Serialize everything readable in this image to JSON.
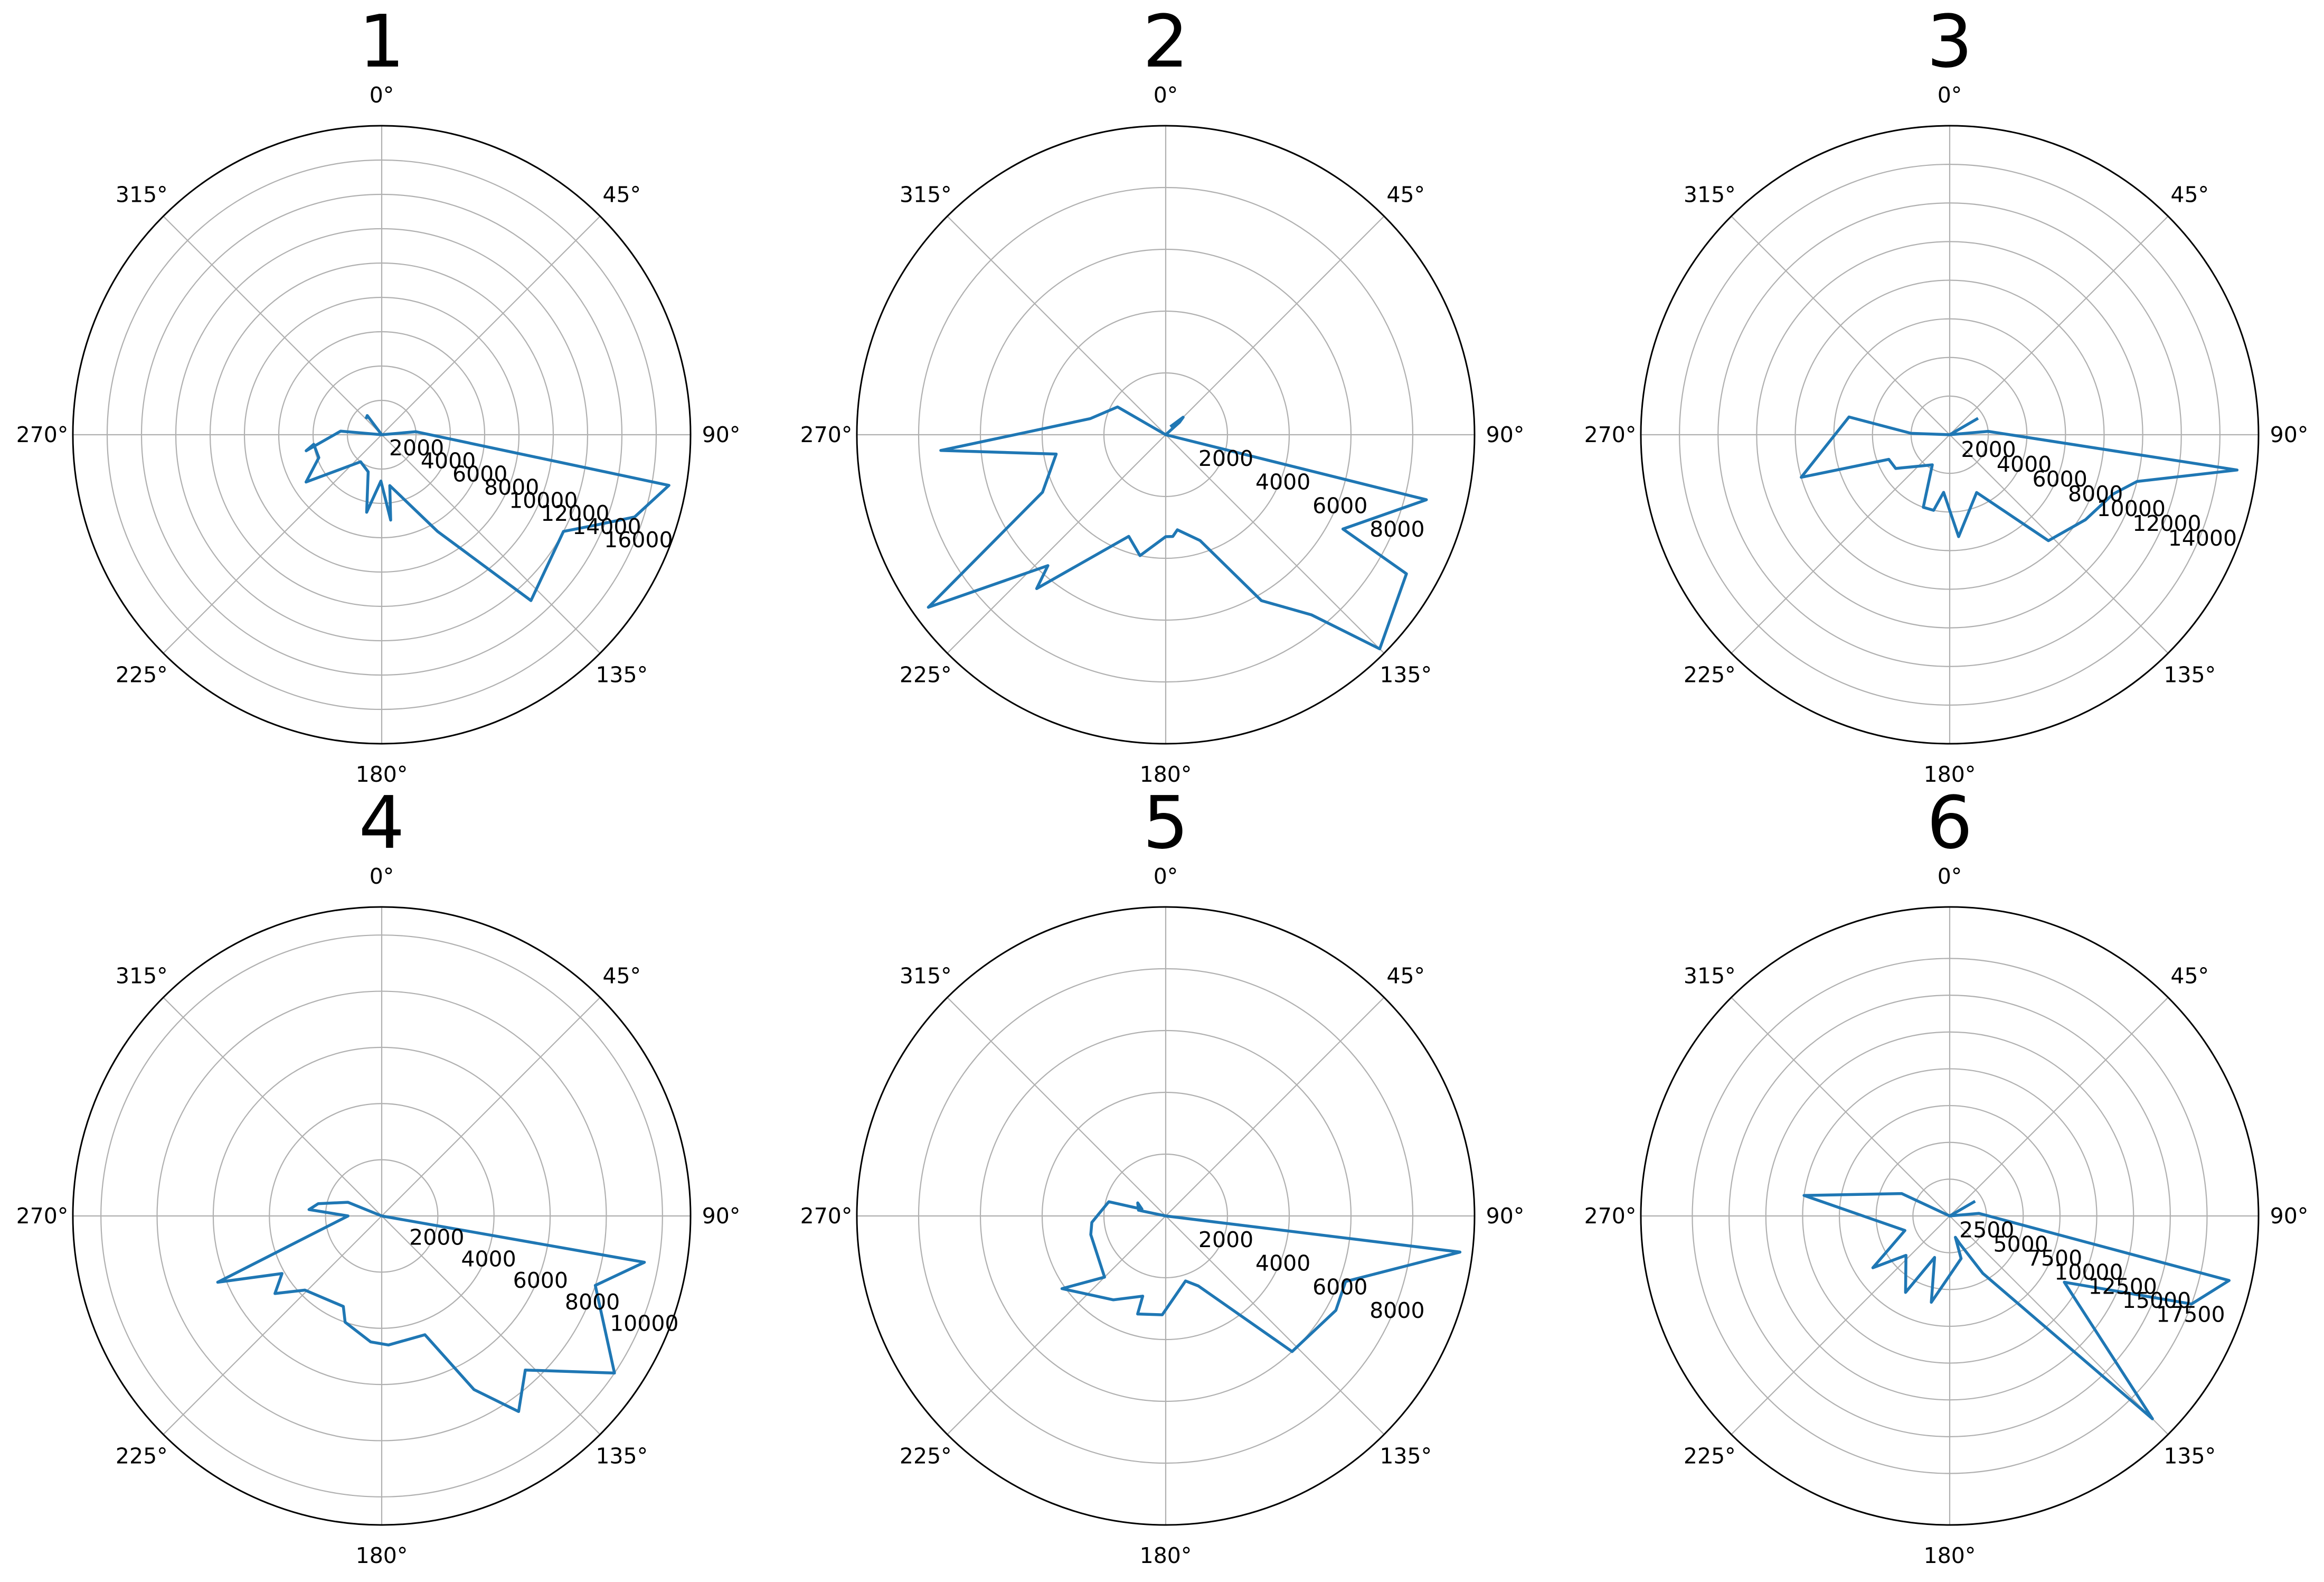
{
  "chart_data": [
    {
      "type": "polar-line",
      "title": "1",
      "theta_zero": "N",
      "theta_direction": "clockwise",
      "theta_ticks": [
        "0°",
        "45°",
        "90°",
        "135°",
        "180°",
        "225°",
        "270°",
        "315°"
      ],
      "rlim": [
        0,
        18000
      ],
      "r_ticks": [
        2000,
        4000,
        6000,
        8000,
        10000,
        12000,
        14000,
        16000
      ],
      "r_tick_labels": [
        "2000",
        "4000",
        "6000",
        "8000",
        "10000",
        "12000",
        "14000",
        "16000"
      ],
      "grid": true,
      "line_color": "#1f77b4",
      "points": [
        {
          "theta": 0,
          "r": 0
        },
        {
          "theta": 85,
          "r": 2000
        },
        {
          "theta": 100,
          "r": 17000
        },
        {
          "theta": 108,
          "r": 15500
        },
        {
          "theta": 113,
          "r": 13500
        },
        {
          "theta": 118,
          "r": 12000
        },
        {
          "theta": 138,
          "r": 13000
        },
        {
          "theta": 150,
          "r": 6500
        },
        {
          "theta": 171,
          "r": 3000
        },
        {
          "theta": 174,
          "r": 5000
        },
        {
          "theta": 181,
          "r": 2700
        },
        {
          "theta": 191,
          "r": 4600
        },
        {
          "theta": 200,
          "r": 2300
        },
        {
          "theta": 218,
          "r": 2000
        },
        {
          "theta": 238,
          "r": 5200
        },
        {
          "theta": 250,
          "r": 3900
        },
        {
          "theta": 262,
          "r": 4000
        },
        {
          "theta": 258,
          "r": 4500
        },
        {
          "theta": 275,
          "r": 2400
        },
        {
          "theta": 0,
          "r": 0
        },
        {
          "theta": 323,
          "r": 1400
        },
        {
          "theta": 315,
          "r": 1300
        }
      ]
    },
    {
      "type": "polar-line",
      "title": "2",
      "theta_zero": "N",
      "theta_direction": "clockwise",
      "theta_ticks": [
        "0°",
        "45°",
        "90°",
        "135°",
        "180°",
        "225°",
        "270°",
        "315°"
      ],
      "rlim": [
        0,
        10000
      ],
      "r_ticks": [
        2000,
        4000,
        6000,
        8000
      ],
      "r_tick_labels": [
        "2000",
        "4000",
        "6000",
        "8000"
      ],
      "grid": true,
      "line_color": "#1f77b4",
      "points": [
        {
          "theta": 0,
          "r": 0
        },
        {
          "theta": 104,
          "r": 8700
        },
        {
          "theta": 118,
          "r": 6500
        },
        {
          "theta": 120,
          "r": 9000
        },
        {
          "theta": 135,
          "r": 9800
        },
        {
          "theta": 141,
          "r": 7500
        },
        {
          "theta": 150,
          "r": 6200
        },
        {
          "theta": 162,
          "r": 3600
        },
        {
          "theta": 173,
          "r": 3100
        },
        {
          "theta": 176,
          "r": 3300
        },
        {
          "theta": 180,
          "r": 3300
        },
        {
          "theta": 192,
          "r": 4000
        },
        {
          "theta": 200,
          "r": 3500
        },
        {
          "theta": 220,
          "r": 6500
        },
        {
          "theta": 222,
          "r": 5700
        },
        {
          "theta": 234,
          "r": 9500
        },
        {
          "theta": 245,
          "r": 4400
        },
        {
          "theta": 260,
          "r": 3600
        },
        {
          "theta": 266,
          "r": 7300
        },
        {
          "theta": 282,
          "r": 2500
        },
        {
          "theta": 300,
          "r": 1800
        },
        {
          "theta": 0,
          "r": 0
        },
        {
          "theta": 48,
          "r": 600
        },
        {
          "theta": 45,
          "r": 800
        },
        {
          "theta": 30,
          "r": 300
        }
      ]
    },
    {
      "type": "polar-line",
      "title": "3",
      "theta_zero": "N",
      "theta_direction": "clockwise",
      "theta_ticks": [
        "0°",
        "45°",
        "90°",
        "135°",
        "180°",
        "225°",
        "270°",
        "315°"
      ],
      "rlim": [
        0,
        16000
      ],
      "r_ticks": [
        2000,
        4000,
        6000,
        8000,
        10000,
        12000,
        14000
      ],
      "r_tick_labels": [
        "2000",
        "4000",
        "6000",
        "8000",
        "10000",
        "12000",
        "14000"
      ],
      "grid": true,
      "line_color": "#1f77b4",
      "points": [
        {
          "theta": 0,
          "r": 0
        },
        {
          "theta": 85,
          "r": 2000
        },
        {
          "theta": 97,
          "r": 15000
        },
        {
          "theta": 104,
          "r": 10000
        },
        {
          "theta": 110,
          "r": 9000
        },
        {
          "theta": 122,
          "r": 8300
        },
        {
          "theta": 137,
          "r": 7500
        },
        {
          "theta": 155,
          "r": 3300
        },
        {
          "theta": 175,
          "r": 5300
        },
        {
          "theta": 186,
          "r": 3000
        },
        {
          "theta": 192,
          "r": 4000
        },
        {
          "theta": 200,
          "r": 4000
        },
        {
          "theta": 210,
          "r": 1800
        },
        {
          "theta": 238,
          "r": 3300
        },
        {
          "theta": 248,
          "r": 3400
        },
        {
          "theta": 254,
          "r": 8000
        },
        {
          "theta": 280,
          "r": 5300
        },
        {
          "theta": 272,
          "r": 2000
        },
        {
          "theta": 0,
          "r": 0
        },
        {
          "theta": 60,
          "r": 1700
        }
      ]
    },
    {
      "type": "polar-line",
      "title": "4",
      "theta_zero": "N",
      "theta_direction": "clockwise",
      "theta_ticks": [
        "0°",
        "45°",
        "90°",
        "135°",
        "180°",
        "225°",
        "270°",
        "315°"
      ],
      "rlim": [
        0,
        11000
      ],
      "r_ticks": [
        2000,
        4000,
        6000,
        8000,
        10000
      ],
      "r_tick_labels": [
        "2000",
        "4000",
        "6000",
        "8000",
        "10000"
      ],
      "grid": true,
      "line_color": "#1f77b4",
      "points": [
        {
          "theta": 0,
          "r": 0
        },
        {
          "theta": 100,
          "r": 9500
        },
        {
          "theta": 108,
          "r": 8000
        },
        {
          "theta": 124,
          "r": 10000
        },
        {
          "theta": 137,
          "r": 7500
        },
        {
          "theta": 145,
          "r": 8500
        },
        {
          "theta": 152,
          "r": 7000
        },
        {
          "theta": 160,
          "r": 4500
        },
        {
          "theta": 177,
          "r": 4600
        },
        {
          "theta": 185,
          "r": 4500
        },
        {
          "theta": 199,
          "r": 4000
        },
        {
          "theta": 203,
          "r": 3500
        },
        {
          "theta": 226,
          "r": 3800
        },
        {
          "theta": 234,
          "r": 4700
        },
        {
          "theta": 240,
          "r": 4100
        },
        {
          "theta": 248,
          "r": 6300
        },
        {
          "theta": 270,
          "r": 1200
        },
        {
          "theta": 275,
          "r": 2600
        },
        {
          "theta": 281,
          "r": 2300
        },
        {
          "theta": 292,
          "r": 1300
        },
        {
          "theta": 0,
          "r": 0
        }
      ]
    },
    {
      "type": "polar-line",
      "title": "5",
      "theta_zero": "N",
      "theta_direction": "clockwise",
      "theta_ticks": [
        "0°",
        "45°",
        "90°",
        "135°",
        "180°",
        "225°",
        "270°",
        "315°"
      ],
      "rlim": [
        0,
        10000
      ],
      "r_ticks": [
        2000,
        4000,
        6000,
        8000
      ],
      "r_tick_labels": [
        "2000",
        "4000",
        "6000",
        "8000"
      ],
      "grid": true,
      "line_color": "#1f77b4",
      "points": [
        {
          "theta": 0,
          "r": 0
        },
        {
          "theta": 97,
          "r": 9600
        },
        {
          "theta": 110,
          "r": 6200
        },
        {
          "theta": 119,
          "r": 6300
        },
        {
          "theta": 137,
          "r": 6000
        },
        {
          "theta": 155,
          "r": 2500
        },
        {
          "theta": 163,
          "r": 2200
        },
        {
          "theta": 182,
          "r": 3200
        },
        {
          "theta": 196,
          "r": 3300
        },
        {
          "theta": 196,
          "r": 2700
        },
        {
          "theta": 212,
          "r": 3200
        },
        {
          "theta": 235,
          "r": 4100
        },
        {
          "theta": 225,
          "r": 2800
        },
        {
          "theta": 256,
          "r": 2500
        },
        {
          "theta": 265,
          "r": 2400
        },
        {
          "theta": 284,
          "r": 1900
        },
        {
          "theta": 286,
          "r": 800
        },
        {
          "theta": 295,
          "r": 1000
        },
        {
          "theta": 282,
          "r": 900
        },
        {
          "theta": 0,
          "r": 0
        }
      ]
    },
    {
      "type": "polar-line",
      "title": "6",
      "theta_zero": "N",
      "theta_direction": "clockwise",
      "theta_ticks": [
        "0°",
        "45°",
        "90°",
        "135°",
        "180°",
        "225°",
        "270°",
        "315°"
      ],
      "rlim": [
        0,
        21000
      ],
      "r_ticks": [
        2500,
        5000,
        7500,
        10000,
        12500,
        15000,
        17500
      ],
      "r_tick_labels": [
        "2500",
        "5000",
        "7500",
        "10000",
        "12500",
        "15000",
        "17500"
      ],
      "grid": true,
      "line_color": "#1f77b4",
      "points": [
        {
          "theta": 0,
          "r": 0
        },
        {
          "theta": 85,
          "r": 2000
        },
        {
          "theta": 103,
          "r": 19500
        },
        {
          "theta": 110,
          "r": 17500
        },
        {
          "theta": 120,
          "r": 9000
        },
        {
          "theta": 135,
          "r": 19500
        },
        {
          "theta": 150,
          "r": 4500
        },
        {
          "theta": 160,
          "r": 2000
        },
        {
          "theta": 165,
          "r": 1500
        },
        {
          "theta": 165,
          "r": 3000
        },
        {
          "theta": 192,
          "r": 6000
        },
        {
          "theta": 200,
          "r": 3000
        },
        {
          "theta": 210,
          "r": 6000
        },
        {
          "theta": 228,
          "r": 4000
        },
        {
          "theta": 236,
          "r": 6300
        },
        {
          "theta": 252,
          "r": 3200
        },
        {
          "theta": 278,
          "r": 10000
        },
        {
          "theta": 295,
          "r": 3600
        },
        {
          "theta": 0,
          "r": 0
        },
        {
          "theta": 60,
          "r": 2000
        }
      ]
    }
  ]
}
